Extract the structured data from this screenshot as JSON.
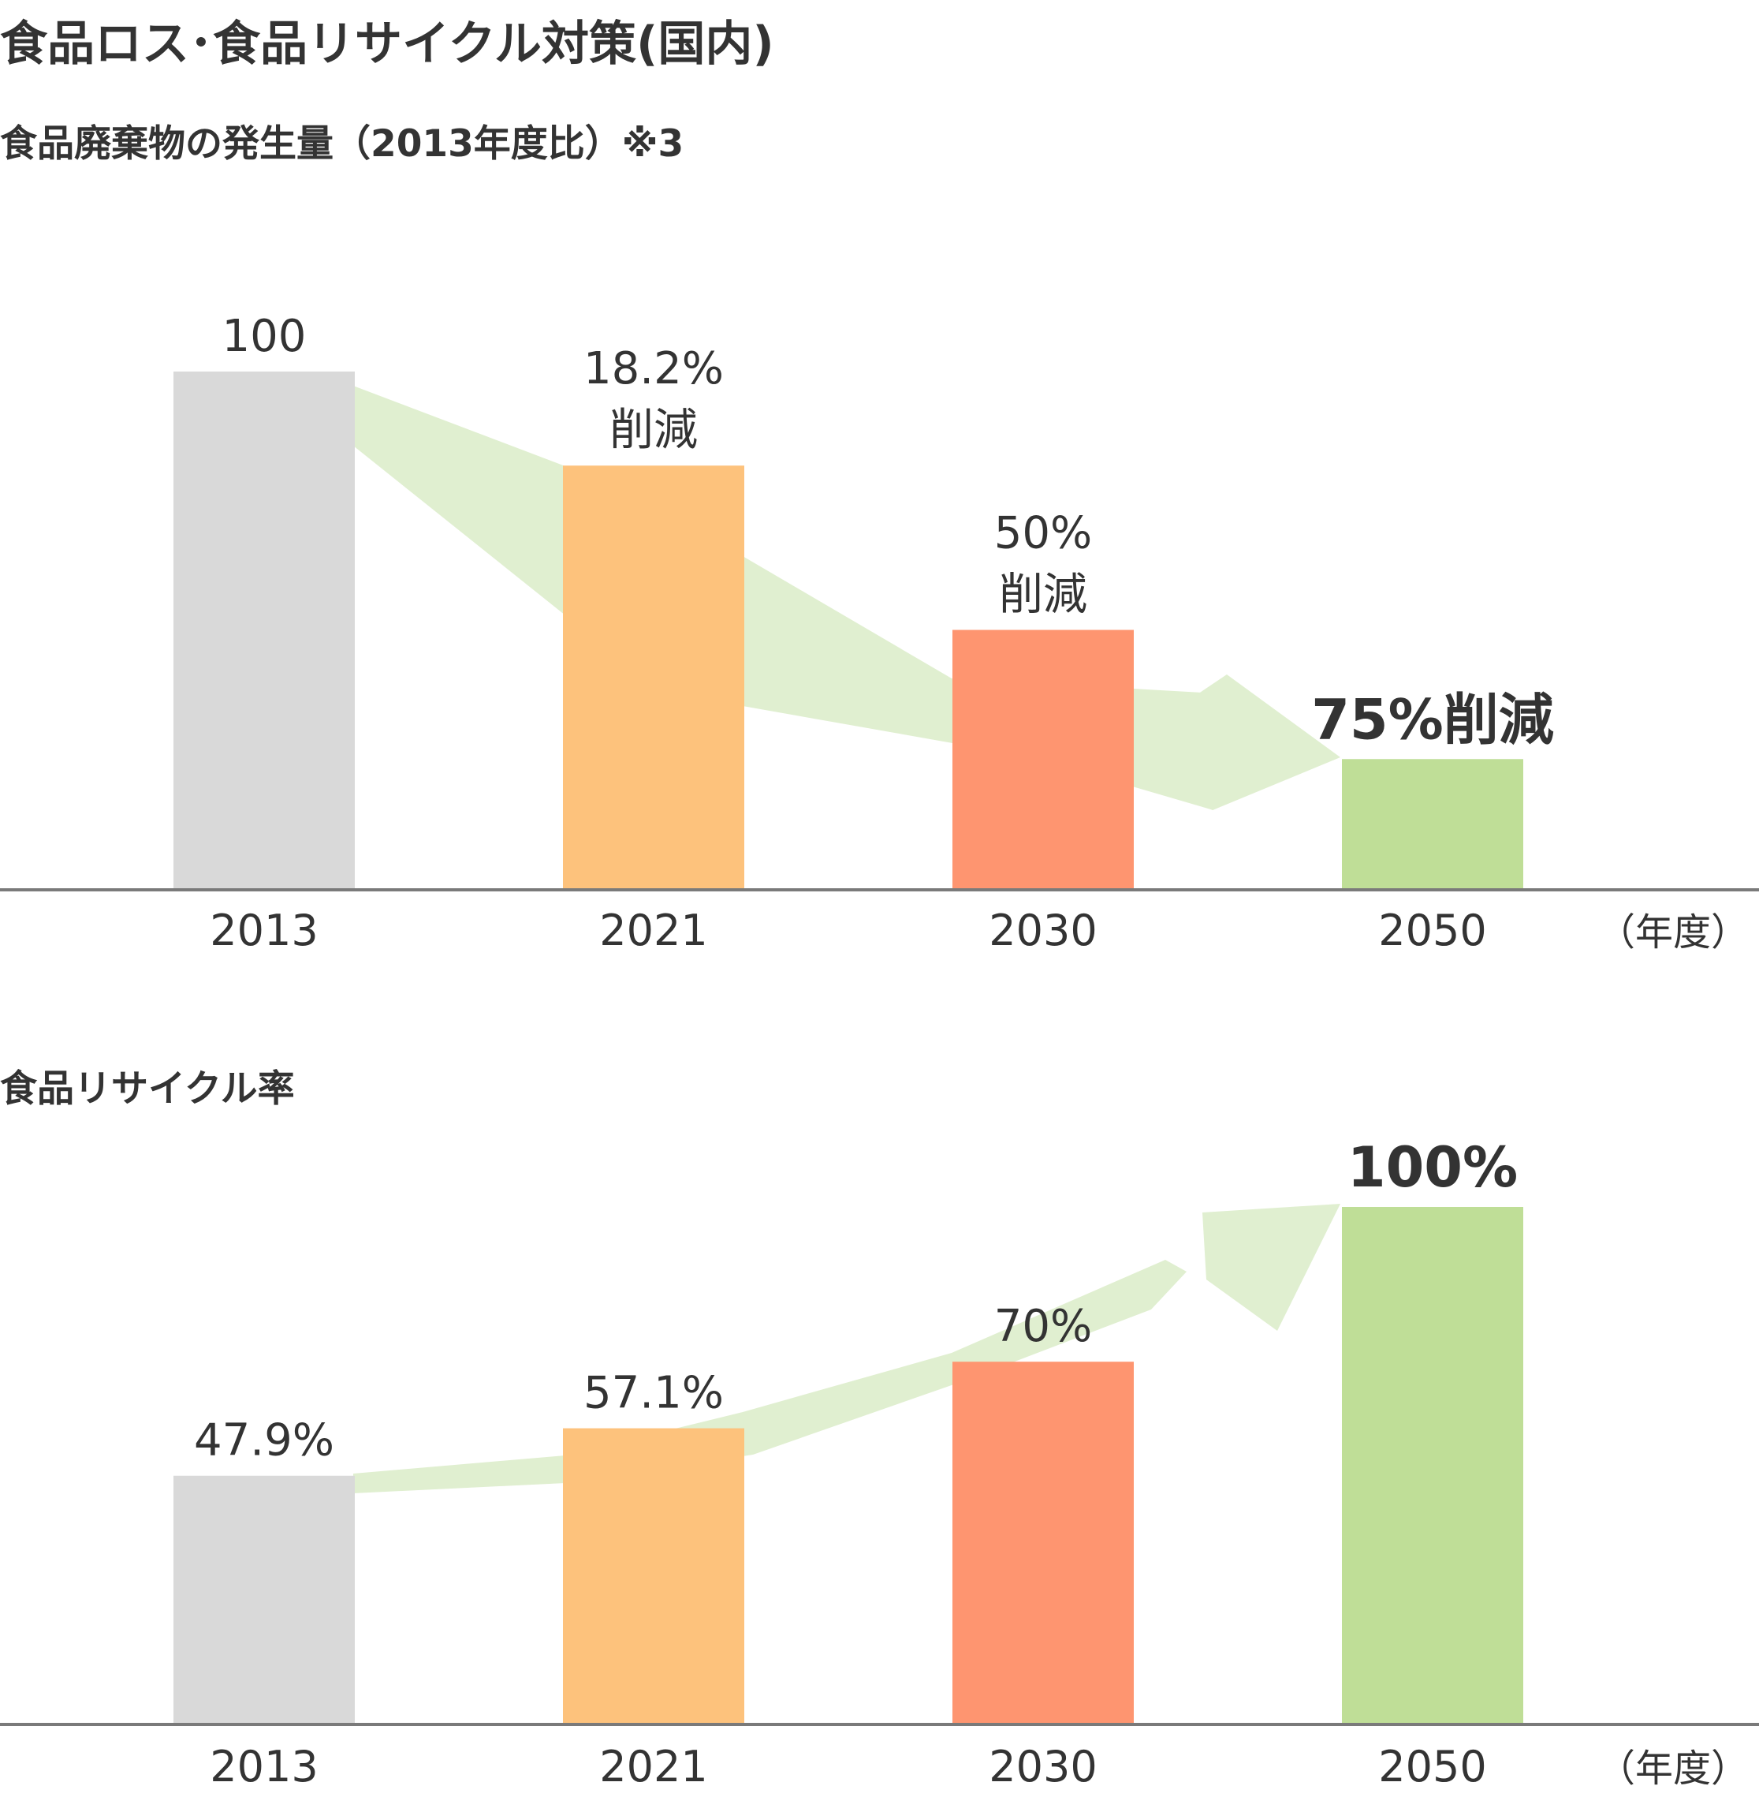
{
  "page": {
    "title": "食品ロス･食品リサイクル対策(国内)"
  },
  "colors": {
    "gray": "#d9d9d9",
    "orange_light": "#fdc27c",
    "orange_dark": "#fe9570",
    "green": "#bfde97",
    "arrow": "#e0efd0",
    "axis": "#7a7a7a",
    "text": "#333333"
  },
  "chart_data": [
    {
      "type": "bar",
      "title": "食品廃棄物の発生量（2013年度比）※3",
      "categories": [
        "2013",
        "2021",
        "2030",
        "2050"
      ],
      "values": [
        100,
        81.8,
        50,
        25
      ],
      "data_labels": [
        [
          "100"
        ],
        [
          "18.2%",
          "削減"
        ],
        [
          "50%",
          "削減"
        ],
        [
          "75%削減"
        ]
      ],
      "axis_unit": "（年度）",
      "bar_colors": [
        "#d9d9d9",
        "#fdc27c",
        "#fe9570",
        "#bfde97"
      ],
      "trend_arrow": "down",
      "ylim": [
        0,
        100
      ],
      "grid": false
    },
    {
      "type": "bar",
      "title": "食品リサイクル率",
      "categories": [
        "2013",
        "2021",
        "2030",
        "2050"
      ],
      "values": [
        47.9,
        57.1,
        70,
        100
      ],
      "data_labels": [
        [
          "47.9%"
        ],
        [
          "57.1%"
        ],
        [
          "70%"
        ],
        [
          "100%"
        ]
      ],
      "axis_unit": "（年度）",
      "bar_colors": [
        "#d9d9d9",
        "#fdc27c",
        "#fe9570",
        "#bfde97"
      ],
      "trend_arrow": "up",
      "ylim": [
        0,
        100
      ],
      "grid": false
    }
  ]
}
